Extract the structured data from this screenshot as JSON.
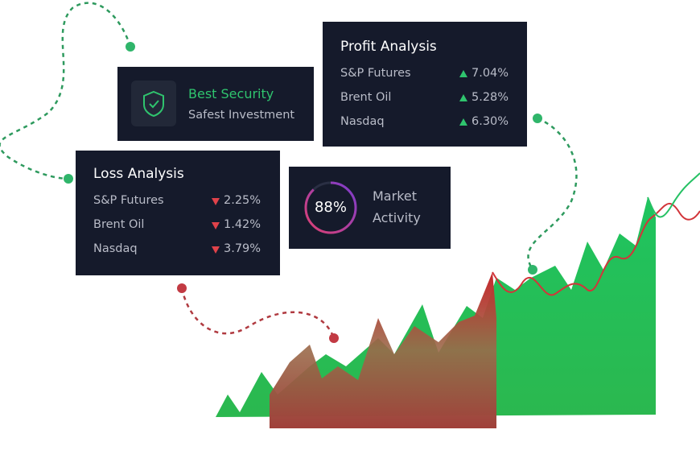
{
  "security_card": {
    "title": "Best Security",
    "subtitle": "Safest Investment"
  },
  "profit_card": {
    "title": "Profit Analysis",
    "rows": [
      [
        "S&P Futures",
        "7.04%"
      ],
      [
        "Brent Oil",
        "5.28%"
      ],
      [
        "Nasdaq",
        "6.30%"
      ]
    ]
  },
  "loss_card": {
    "title": "Loss Analysis",
    "rows": [
      [
        "S&P Futures",
        "2.25%"
      ],
      [
        "Brent Oil",
        "1.42%"
      ],
      [
        "Nasdaq",
        "3.79%"
      ]
    ]
  },
  "activity_card": {
    "percent": "88%",
    "label_lines": [
      "Market",
      "Activity"
    ]
  }
}
